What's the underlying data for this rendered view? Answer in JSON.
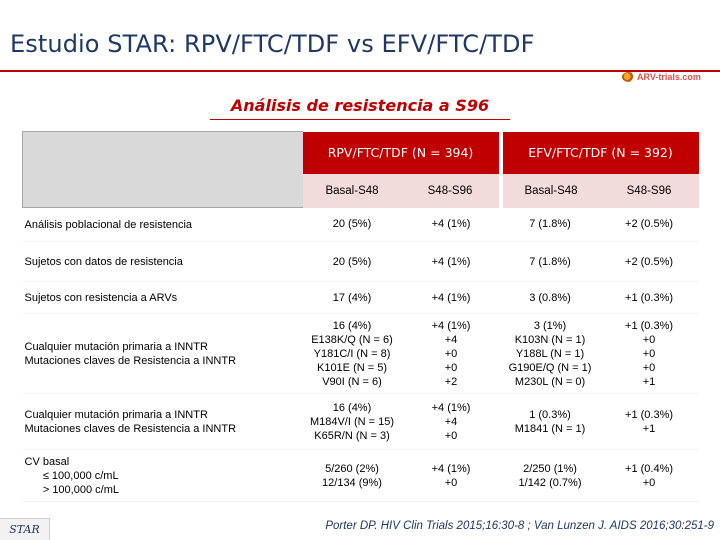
{
  "slide": {
    "title": "Estudio STAR: RPV/FTC/TDF vs EFV/FTC/TDF",
    "subtitle": "Análisis de resistencia a S96",
    "logo_text": "ARV-trials.com",
    "footer_tag": "STAR",
    "citation": "Porter DP. HIV Clin Trials 2015;16:30-8 ; Van Lunzen J. AIDS 2016;30:251-9"
  },
  "table": {
    "groups": [
      "RPV/FTC/TDF (N = 394)",
      "EFV/FTC/TDF (N = 392)"
    ],
    "subheaders": [
      "Basal-S48",
      "S48-S96",
      "Basal-S48",
      "S48-S96"
    ],
    "rows": [
      {
        "label": "Análisis poblacional de resistencia",
        "cells": [
          "20 (5%)",
          "+4 (1%)",
          "7 (1.8%)",
          "+2 (0.5%)"
        ]
      },
      {
        "label": "Sujetos con datos de resistencia",
        "cells": [
          "20 (5%)",
          "+4 (1%)",
          "7 (1.8%)",
          "+2 (0.5%)"
        ]
      },
      {
        "label": "Sujetos con resistencia a ARVs",
        "cells": [
          "17 (4%)",
          "+4 (1%)",
          "3 (0.8%)",
          "+1 (0.3%)"
        ]
      },
      {
        "label": "Cualquier mutación primaria a INNTR\nMutaciones claves de Resistencia a INNTR",
        "cells": [
          "16 (4%)\nE138K/Q (N = 6)\nY181C/I (N = 8)\nK101E (N = 5)\nV90I (N = 6)",
          "+4 (1%)\n+4\n+0\n+0\n+2",
          "3 (1%)\nK103N (N = 1)\nY188L (N = 1)\nG190E/Q (N = 1)\nM230L (N = 0)",
          "+1 (0.3%)\n+0\n+0\n+0\n+1"
        ]
      },
      {
        "label": "Cualquier mutación primaria a INNTR\nMutaciones claves de Resistencia a INNTR",
        "cells": [
          "16 (4%)\nM184V/I (N = 15)\nK65R/N (N = 3)",
          "+4 (1%)\n+4\n+0",
          "1 (0.3%)\nM1841 (N = 1)",
          "+1 (0.3%)\n+1"
        ]
      },
      {
        "label": "CV basal\n      ≤ 100,000 c/mL\n      > 100,000 c/mL",
        "cells": [
          "5/260 (2%)\n12/134 (9%)",
          "+4 (1%)\n+0",
          "2/250 (1%)\n1/142 (0.7%)",
          "+1 (0.4%)\n+0"
        ]
      }
    ]
  }
}
